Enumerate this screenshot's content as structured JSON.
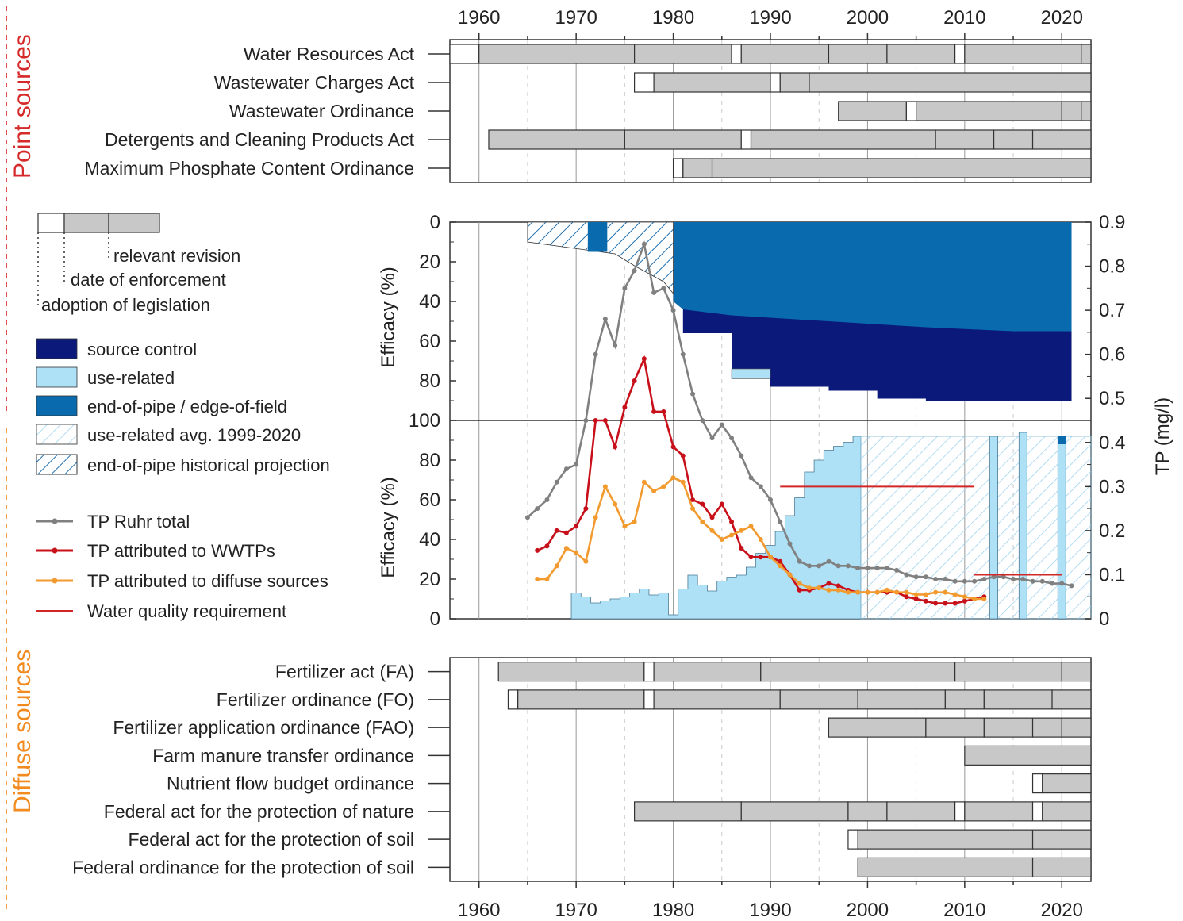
{
  "point_sources_label": "Point sources",
  "diffuse_sources_label": "Diffuse sources",
  "colors": {
    "source_control": "#0b1a7a",
    "use_related": "#aee1f6",
    "end_of_pipe": "#0a6aae",
    "hatch": "#1f6fb0",
    "hatch_light": "#9fd3ee",
    "tp_total": "#808080",
    "tp_wwtp": "#c8101a",
    "tp_diffuse": "#f29a2e",
    "requirement": "#d32626",
    "bar_fill": "#c8c8c8",
    "bar_stroke": "#333333",
    "point_dash": "#e05050",
    "diffuse_dash": "#f2a050"
  },
  "legend": {
    "timeline": {
      "relevant_revision": "relevant revision",
      "date_of_enforcement": "date of enforcement",
      "adoption_of_legislation": "adoption of legislation"
    },
    "items": [
      {
        "label": "source control",
        "kind": "swatch",
        "color": "source_control"
      },
      {
        "label": "use-related",
        "kind": "swatch",
        "color": "use_related"
      },
      {
        "label": "end-of-pipe / edge-of-field",
        "kind": "swatch",
        "color": "end_of_pipe"
      },
      {
        "label": "use-related avg. 1999-2020",
        "kind": "hatch_light"
      },
      {
        "label": "end-of-pipe historical projection",
        "kind": "hatch"
      },
      {
        "label": "TP Ruhr total",
        "kind": "line",
        "color": "tp_total"
      },
      {
        "label": "TP attributed to WWTPs",
        "kind": "line",
        "color": "tp_wwtp"
      },
      {
        "label": "TP attributed to diffuse sources",
        "kind": "line",
        "color": "tp_diffuse"
      },
      {
        "label": "Water quality requirement",
        "kind": "plain_line",
        "color": "requirement"
      }
    ]
  },
  "chart_data": [
    {
      "type": "timeline",
      "panel": "point sources",
      "x_ticks": [
        1960,
        1970,
        1980,
        1990,
        2000,
        2010,
        2020
      ],
      "xlim": [
        1957,
        2023
      ],
      "rows": [
        {
          "name": "Water Resources Act",
          "adoption": 1957,
          "enforcement": 1960,
          "revisions": [
            1976,
            1986,
            1987,
            1996,
            2002,
            2009,
            2010,
            2022
          ]
        },
        {
          "name": "Wastewater Charges Act",
          "adoption": 1976,
          "enforcement": 1978,
          "revisions": [
            1990,
            1991,
            1994
          ]
        },
        {
          "name": "Wastewater Ordinance",
          "adoption": null,
          "enforcement": 1997,
          "revisions": [
            2004,
            2005,
            2020,
            2022
          ]
        },
        {
          "name": "Detergents and Cleaning Products Act",
          "adoption": null,
          "enforcement": 1961,
          "revisions": [
            1975,
            1987,
            1988,
            2007,
            2013,
            2017
          ]
        },
        {
          "name": "Maximum Phosphate Content Ordinance",
          "adoption": 1980,
          "enforcement": 1981,
          "revisions": [
            1984
          ]
        }
      ]
    },
    {
      "type": "area",
      "panel": "efficacy (inverted)",
      "ylabel": "Efficacy (%)",
      "y_ticks": [
        0,
        20,
        40,
        60,
        80,
        100
      ],
      "xlim": [
        1957,
        2023
      ],
      "end_of_pipe_hatch_bottom": [
        [
          1965,
          10
        ],
        [
          1971,
          14
        ],
        [
          1974,
          16
        ],
        [
          1976,
          22
        ],
        [
          1979,
          30
        ]
      ],
      "end_of_pipe_solid_bottom": [
        [
          1980,
          40
        ],
        [
          2021,
          55
        ]
      ],
      "source_control_bottom": [
        [
          1981,
          56
        ],
        [
          1986,
          74
        ],
        [
          1990,
          83
        ],
        [
          1996,
          85
        ],
        [
          2001,
          89
        ],
        [
          2006,
          90
        ],
        [
          2021,
          93
        ]
      ],
      "use_related_block": {
        "from": 1986,
        "to": 1990,
        "top": 74,
        "bottom": 79
      }
    },
    {
      "type": "line",
      "panel": "TP concentration",
      "ylabel_left": "Efficacy (%)",
      "ylabel_right": "TP (mg/l)",
      "left_ticks": [
        0,
        20,
        40,
        60,
        80
      ],
      "right_ticks": [
        0,
        0.1,
        0.2,
        0.3,
        0.4,
        0.5,
        0.6,
        0.7,
        0.8,
        0.9
      ],
      "series": [
        {
          "name": "TP Ruhr total",
          "x": [
            1965,
            1966,
            1967,
            1968,
            1969,
            1970,
            1971,
            1972,
            1973,
            1974,
            1975,
            1976,
            1977,
            1978,
            1979,
            1980,
            1981,
            1982,
            1983,
            1984,
            1985,
            1986,
            1987,
            1988,
            1989,
            1990,
            1991,
            1992,
            1993,
            1994,
            1995,
            1996,
            1997,
            1998,
            1999,
            2000,
            2001,
            2002,
            2003,
            2004,
            2005,
            2006,
            2007,
            2008,
            2009,
            2010,
            2011,
            2012,
            2013,
            2014,
            2015,
            2016,
            2017,
            2018,
            2019,
            2020,
            2021
          ],
          "y": [
            0.23,
            0.25,
            0.27,
            0.31,
            0.34,
            0.35,
            0.45,
            0.6,
            0.68,
            0.62,
            0.75,
            0.79,
            0.85,
            0.74,
            0.75,
            0.7,
            0.6,
            0.51,
            0.45,
            0.41,
            0.44,
            0.41,
            0.37,
            0.32,
            0.3,
            0.27,
            0.22,
            0.17,
            0.13,
            0.12,
            0.12,
            0.13,
            0.12,
            0.12,
            0.115,
            0.115,
            0.115,
            0.115,
            0.11,
            0.1,
            0.095,
            0.095,
            0.09,
            0.09,
            0.085,
            0.085,
            0.085,
            0.09,
            0.095,
            0.095,
            0.09,
            0.09,
            0.085,
            0.085,
            0.08,
            0.08,
            0.075
          ]
        },
        {
          "name": "TP attributed to WWTPs",
          "x": [
            1966,
            1967,
            1968,
            1969,
            1970,
            1971,
            1972,
            1973,
            1974,
            1975,
            1976,
            1977,
            1978,
            1979,
            1980,
            1981,
            1982,
            1983,
            1984,
            1985,
            1986,
            1987,
            1988,
            1989,
            1990,
            1991,
            1992,
            1993,
            1994,
            1995,
            1996,
            1997,
            1998,
            1999,
            2000,
            2001,
            2002,
            2003,
            2004,
            2005,
            2006,
            2007,
            2008,
            2009,
            2010,
            2011,
            2012
          ],
          "y": [
            0.155,
            0.165,
            0.2,
            0.195,
            0.21,
            0.25,
            0.45,
            0.45,
            0.39,
            0.48,
            0.54,
            0.59,
            0.47,
            0.47,
            0.39,
            0.37,
            0.27,
            0.26,
            0.23,
            0.26,
            0.22,
            0.16,
            0.14,
            0.14,
            0.14,
            0.13,
            0.1,
            0.065,
            0.065,
            0.07,
            0.08,
            0.075,
            0.065,
            0.06,
            0.06,
            0.06,
            0.06,
            0.06,
            0.05,
            0.045,
            0.04,
            0.035,
            0.035,
            0.035,
            0.04,
            0.045,
            0.05
          ]
        },
        {
          "name": "TP attributed to diffuse sources",
          "x": [
            1966,
            1967,
            1968,
            1969,
            1970,
            1971,
            1972,
            1973,
            1974,
            1975,
            1976,
            1977,
            1978,
            1979,
            1980,
            1981,
            1982,
            1983,
            1984,
            1985,
            1986,
            1987,
            1988,
            1989,
            1990,
            1991,
            1992,
            1993,
            1994,
            1995,
            1996,
            1997,
            1998,
            1999,
            2000,
            2001,
            2002,
            2003,
            2004,
            2005,
            2006,
            2007,
            2008,
            2009,
            2010,
            2011,
            2012
          ],
          "y": [
            0.09,
            0.09,
            0.12,
            0.16,
            0.15,
            0.13,
            0.23,
            0.3,
            0.26,
            0.21,
            0.22,
            0.31,
            0.29,
            0.3,
            0.32,
            0.31,
            0.25,
            0.22,
            0.2,
            0.18,
            0.19,
            0.2,
            0.21,
            0.18,
            0.14,
            0.12,
            0.1,
            0.08,
            0.07,
            0.07,
            0.065,
            0.065,
            0.06,
            0.06,
            0.06,
            0.06,
            0.065,
            0.06,
            0.06,
            0.055,
            0.055,
            0.06,
            0.06,
            0.055,
            0.05,
            0.045,
            0.045
          ]
        },
        {
          "name": "Water quality requirement",
          "segments": [
            {
              "x": [
                1991,
                2011
              ],
              "y": 0.3
            },
            {
              "x": [
                2011,
                2020
              ],
              "y": 0.1
            }
          ]
        }
      ],
      "use_related_pct": {
        "x": [
          1969.5,
          1970.5,
          1971.5,
          1972.5,
          1973.5,
          1974.5,
          1975.5,
          1976.5,
          1977.5,
          1978.5,
          1979.5,
          1980.5,
          1981.5,
          1982.5,
          1983.5,
          1984.5,
          1985.5,
          1986.5,
          1987.5,
          1988.5,
          1989.5,
          1990.5,
          1991.5,
          1992.5,
          1993.5,
          1994.5,
          1995.5,
          1996.5,
          1997.5,
          1998.5
        ],
        "y": [
          13,
          11,
          8,
          9,
          10,
          11,
          13,
          15,
          12,
          13,
          2,
          15,
          22,
          17,
          14,
          19,
          21,
          22,
          26,
          33,
          37,
          44,
          52,
          61,
          74,
          80,
          85,
          87,
          89,
          92
        ]
      },
      "use_related_avg_pct": 92,
      "bars_pct": [
        {
          "year": 2013,
          "value": 92
        },
        {
          "year": 2016,
          "value": 94
        },
        {
          "year": 2020,
          "value": 92
        }
      ]
    },
    {
      "type": "timeline",
      "panel": "diffuse sources",
      "x_ticks": [
        1960,
        1970,
        1980,
        1990,
        2000,
        2010,
        2020
      ],
      "rows": [
        {
          "name": "Fertilizer act (FA)",
          "adoption": null,
          "enforcement": 1962,
          "revisions": [
            1977,
            1978,
            1989,
            2009,
            2020
          ]
        },
        {
          "name": "Fertilizer ordinance (FO)",
          "adoption": 1963,
          "enforcement": 1964,
          "revisions": [
            1977,
            1978,
            1991,
            1999,
            2008,
            2012,
            2019
          ]
        },
        {
          "name": "Fertilizer application ordinance (FAO)",
          "adoption": null,
          "enforcement": 1996,
          "revisions": [
            2006,
            2012,
            2017,
            2020
          ]
        },
        {
          "name": "Farm manure transfer ordinance",
          "adoption": null,
          "enforcement": 2010,
          "revisions": []
        },
        {
          "name": "Nutrient flow budget ordinance",
          "adoption": 2017,
          "enforcement": 2018,
          "revisions": []
        },
        {
          "name": "Federal act for the protection of nature",
          "adoption": null,
          "enforcement": 1976,
          "revisions": [
            1987,
            1998,
            2002,
            2009,
            2010,
            2017,
            2018
          ]
        },
        {
          "name": "Federal act for the protection of soil",
          "adoption": 1998,
          "enforcement": 1999,
          "revisions": [
            2017
          ]
        },
        {
          "name": "Federal ordinance for the protection of soil",
          "adoption": null,
          "enforcement": 1999,
          "revisions": [
            2017
          ]
        }
      ]
    }
  ]
}
